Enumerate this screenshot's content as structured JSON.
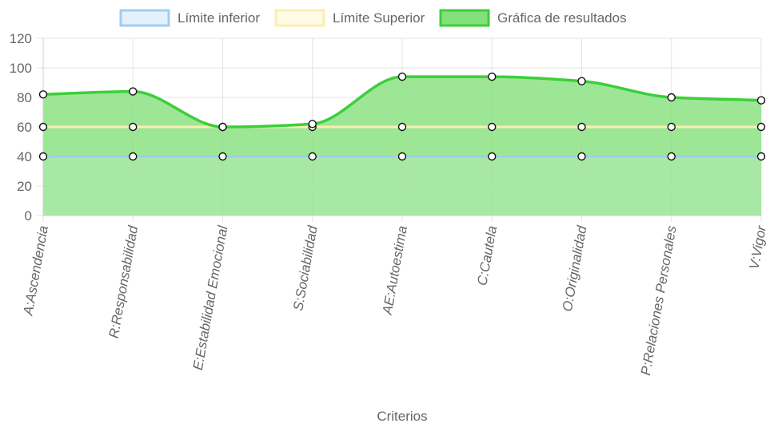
{
  "chart_data": {
    "type": "area",
    "x_label": "Criterios",
    "categories": [
      "A:Ascendencia",
      "R:Responsabilidad",
      "E:Estabilidad Emocional",
      "S:Sociabilidad",
      "AE:Autoestima",
      "C:Cautela",
      "O:Originalidad",
      "P:Relaciones Personales",
      "V:Vigor"
    ],
    "y_ticks": [
      0,
      20,
      40,
      60,
      80,
      100,
      120
    ],
    "ylim": [
      0,
      120
    ],
    "grid": true,
    "legend_position": "top-center",
    "series": [
      {
        "name": "Límite inferior",
        "values": [
          40,
          40,
          40,
          40,
          40,
          40,
          40,
          40,
          40
        ],
        "border_color": "#9fcdf2",
        "fill_color": "#e4f1fc",
        "filled": true
      },
      {
        "name": "Límite Superior",
        "values": [
          60,
          60,
          60,
          60,
          60,
          60,
          60,
          60,
          60
        ],
        "border_color": "#fbeeb0",
        "fill_color": "#fffbe6",
        "filled": false
      },
      {
        "name": "Gráfica de resultados",
        "values": [
          82,
          84,
          60,
          62,
          94,
          94,
          91,
          80,
          78
        ],
        "border_color": "#3ccf3a",
        "fill_color": "#84e07a",
        "filled": true
      }
    ]
  }
}
